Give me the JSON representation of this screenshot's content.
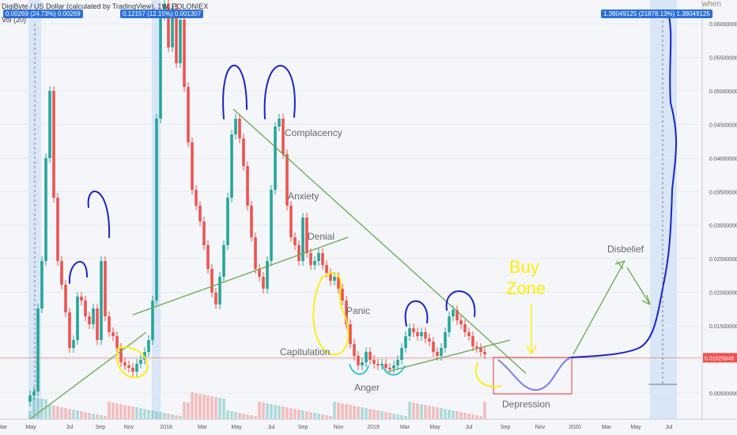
{
  "header": {
    "title": "DigiByte / US Dollar (calculated by TradingView), 1W, POLONIEX",
    "indicator": "Vol (20)",
    "pill_left_1": "0.00269 (24.73%) 0.00269",
    "pill_left_2": "0.12157 (12.15%) 0.001307",
    "pill_right": "1.38049125 (21878.13%) 1.38049125",
    "corner_note": "when"
  },
  "colors": {
    "up": "#26a69a",
    "down": "#ef5350",
    "trendline": "#6aa84f",
    "blue_ink": "#1a24c8",
    "yellow_ink": "#ffee00",
    "cyan_ink": "#29c5d6",
    "projection": "#7c7cf0",
    "price_line": "#ef5350",
    "highlight_band": "#cfe0f5"
  },
  "chart_data": {
    "type": "candlestick",
    "title": "DigiByte / US Dollar (calculated by TradingView), 1W, POLONIEX",
    "ylim": [
      0.003,
      0.063
    ],
    "y_ticks": [
      "0.06000000",
      "0.05500000",
      "0.05000000",
      "0.04500000",
      "0.04000000",
      "0.03500000",
      "0.03000000",
      "0.02500000",
      "0.02000000",
      "0.01500000",
      "0.01000000",
      "0.00500000"
    ],
    "x_ticks": [
      "Mar",
      "May",
      "Jul",
      "Sep",
      "Nov",
      "2018",
      "Mar",
      "May",
      "Jul",
      "Sep",
      "Nov",
      "2019",
      "Mar",
      "May",
      "Jul",
      "Sep",
      "Nov",
      "2020",
      "Mar",
      "May",
      "Jul"
    ],
    "current_price": "0.01025848",
    "annotations": [
      "Complacency",
      "Anxiety",
      "Denial",
      "Panic",
      "Capitulation",
      "Anger",
      "Depression",
      "Disbelief",
      "Buy",
      "Zone"
    ]
  }
}
